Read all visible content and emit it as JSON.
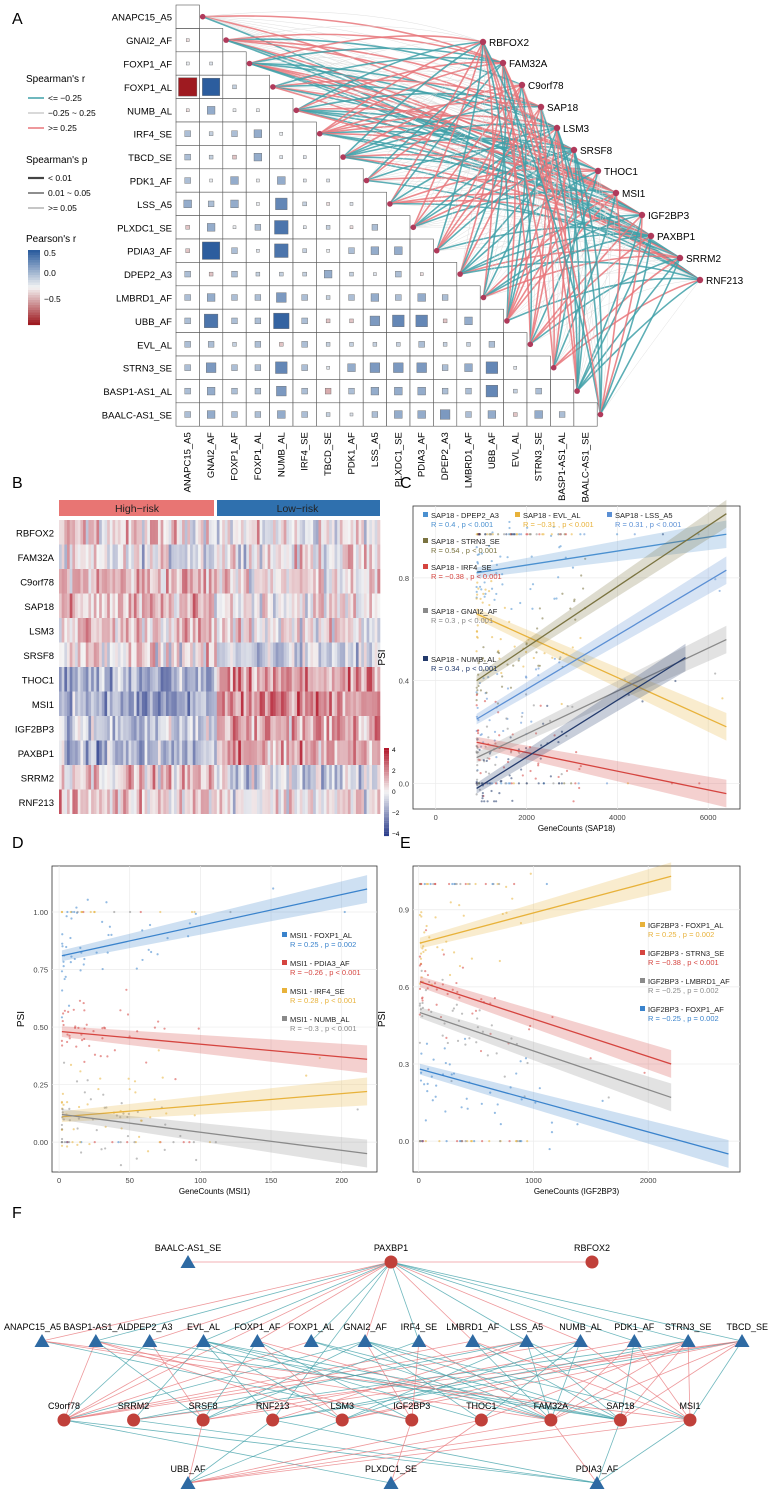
{
  "panel_labels": {
    "a": "A",
    "b": "B",
    "c": "C",
    "d": "D",
    "e": "E",
    "f": "F"
  },
  "colors": {
    "pos": "#e8767a",
    "neg": "#3fa0a8",
    "heat_high": "#b2182b",
    "heat_low": "#2c3e8c",
    "high_risk": "#e87573",
    "low_risk": "#2f70ae",
    "circle_node": "#c0403a",
    "triangle_node": "#2e6aa3"
  },
  "chart_data": [
    {
      "id": "A",
      "type": "heatmap",
      "title": "",
      "events": [
        "ANAPC15_A5",
        "GNAI2_AF",
        "FOXP1_AF",
        "FOXP1_AL",
        "NUMB_AL",
        "IRF4_SE",
        "TBCD_SE",
        "PDK1_AF",
        "LSS_A5",
        "PLXDC1_SE",
        "PDIA3_AF",
        "DPEP2_A3",
        "LMBRD1_AF",
        "UBB_AF",
        "EVL_AL",
        "STRN3_SE",
        "BASP1-AS1_AL",
        "BAALC-AS1_SE"
      ],
      "genes": [
        "RBFOX2",
        "FAM32A",
        "C9orf78",
        "SAP18",
        "LSM3",
        "SRSF8",
        "THOC1",
        "MSI1",
        "IGF2BP3",
        "PAXBP1",
        "SRRM2",
        "RNF213"
      ],
      "legend_spearman_r": {
        "title": "Spearman's r",
        "items": [
          "<= −0.25",
          "−0.25 ~ 0.25",
          ">= 0.25"
        ]
      },
      "legend_spearman_p": {
        "title": "Spearman's p",
        "items": [
          "< 0.01",
          "0.01 ~ 0.05",
          ">= 0.05"
        ]
      },
      "legend_pearson": {
        "title": "Pearson's r",
        "ticks": [
          "0.5",
          "0.0",
          "−0.5"
        ]
      },
      "pearson_matrix": [
        [
          -0.1
        ],
        [
          0.05,
          0.1
        ],
        [
          -0.95,
          0.9,
          0.2
        ],
        [
          -0.1,
          0.4,
          0.05,
          0.05
        ],
        [
          0.3,
          0.2,
          0.3,
          0.4,
          0.05
        ],
        [
          0.3,
          0.2,
          -0.2,
          0.4,
          0.1,
          0.1
        ],
        [
          0.3,
          0.05,
          0.4,
          0.05,
          0.4,
          0.1,
          0.1
        ],
        [
          0.4,
          0.3,
          0.4,
          0.05,
          0.6,
          0.2,
          -0.1,
          0.1
        ],
        [
          -0.2,
          0.4,
          0.05,
          0.3,
          0.7,
          0.1,
          0.2,
          -0.1,
          0.3
        ],
        [
          -0.2,
          0.9,
          0.3,
          0.1,
          0.7,
          0.2,
          0.05,
          0.3,
          0.4,
          0.4
        ],
        [
          0.3,
          -0.2,
          0.3,
          0.2,
          0.2,
          0.2,
          0.4,
          0.2,
          0.1,
          0.3,
          -0.1
        ],
        [
          0.3,
          0.4,
          0.3,
          0.3,
          0.5,
          0.3,
          0.2,
          0.3,
          0.4,
          0.3,
          0.4,
          0.3
        ],
        [
          0.3,
          0.7,
          0.3,
          0.3,
          0.8,
          0.3,
          -0.2,
          -0.2,
          0.5,
          0.6,
          0.6,
          -0.2,
          0.4
        ],
        [
          0.3,
          0.3,
          0.2,
          0.3,
          -0.2,
          0.3,
          0.2,
          0.2,
          0.2,
          0.2,
          0.3,
          0.2,
          0.2,
          0.3
        ],
        [
          0.3,
          0.5,
          0.3,
          0.3,
          0.6,
          0.3,
          0.1,
          0.4,
          0.5,
          0.5,
          0.5,
          0.3,
          0.4,
          0.6,
          0.1
        ],
        [
          0.3,
          0.4,
          0.3,
          0.3,
          0.5,
          0.3,
          -0.3,
          0.3,
          0.4,
          0.4,
          0.4,
          0.3,
          0.3,
          0.6,
          0.2,
          0.3
        ],
        [
          0.3,
          0.4,
          0.3,
          0.3,
          0.4,
          0.3,
          0.2,
          0.1,
          0.3,
          0.4,
          0.4,
          0.5,
          0.3,
          0.4,
          -0.2,
          0.4,
          0.3
        ]
      ]
    },
    {
      "id": "B",
      "type": "heatmap",
      "title": "",
      "groups": [
        "High−risk",
        "Low−risk"
      ],
      "rows": [
        "RBFOX2",
        "FAM32A",
        "C9orf78",
        "SAP18",
        "LSM3",
        "SRSF8",
        "THOC1",
        "MSI1",
        "IGF2BP3",
        "PAXBP1",
        "SRRM2",
        "RNF213"
      ],
      "row_bias_high": [
        0.2,
        -0.1,
        0.4,
        0.3,
        0.3,
        0.1,
        -0.6,
        -0.6,
        -0.3,
        -0.5,
        0.3,
        0.3
      ],
      "row_bias_low": [
        0.0,
        0.1,
        0.2,
        0.1,
        0.1,
        -0.3,
        0.5,
        0.7,
        0.5,
        0.5,
        -0.2,
        0.1
      ],
      "scale_ticks": [
        "4",
        "2",
        "0",
        "−2",
        "−4"
      ],
      "range": [
        -4,
        4
      ]
    },
    {
      "id": "C",
      "type": "scatter",
      "title": "",
      "xlabel": "GeneCounts (SAP18)",
      "ylabel": "PSI",
      "xlim": [
        -500,
        6700
      ],
      "ylim": [
        -0.1,
        1.08
      ],
      "xticks": [
        0,
        2000,
        4000,
        6000
      ],
      "yticks": [
        0.0,
        0.4,
        0.8
      ],
      "series": [
        {
          "name": "SAP18 - DPEP2_A3",
          "stats": "R = 0.4 , p < 0.001",
          "color": "#4a90d0",
          "x0": 900,
          "y0": 0.82,
          "x1": 6400,
          "y1": 0.97
        },
        {
          "name": "SAP18 - EVL_AL",
          "stats": "R = −0.31 , p < 0.001",
          "color": "#e8b23a",
          "x0": 900,
          "y0": 0.66,
          "x1": 6400,
          "y1": 0.22
        },
        {
          "name": "SAP18 - LSS_A5",
          "stats": "R = 0.31 , p < 0.001",
          "color": "#5b8fd4",
          "x0": 900,
          "y0": 0.25,
          "x1": 6400,
          "y1": 0.83
        },
        {
          "name": "SAP18 - STRN3_SE",
          "stats": "R = 0.54 , p < 0.001",
          "color": "#7a7340",
          "x0": 900,
          "y0": 0.4,
          "x1": 6400,
          "y1": 1.05
        },
        {
          "name": "SAP18 - IRF4_SE",
          "stats": "R = −0.38 , p < 0.001",
          "color": "#d5443f",
          "x0": 900,
          "y0": 0.16,
          "x1": 6400,
          "y1": -0.04
        },
        {
          "name": "SAP18 - GNAI2_AF",
          "stats": "R = 0.3 , p < 0.001",
          "color": "#8a8a8a",
          "x0": 900,
          "y0": 0.1,
          "x1": 6400,
          "y1": 0.56
        },
        {
          "name": "SAP18 - NUMB_AL",
          "stats": "R = 0.34 , p < 0.001",
          "color": "#233a6c",
          "x0": 900,
          "y0": -0.02,
          "x1": 5500,
          "y1": 0.49
        }
      ]
    },
    {
      "id": "D",
      "type": "scatter",
      "title": "",
      "xlabel": "GeneCounts (MSI1)",
      "ylabel": "PSI",
      "xlim": [
        -5,
        225
      ],
      "ylim": [
        -0.13,
        1.2
      ],
      "xticks": [
        0,
        50,
        100,
        150,
        200
      ],
      "yticks": [
        0.0,
        0.25,
        0.5,
        0.75,
        1.0
      ],
      "series": [
        {
          "name": "MSI1 - FOXP1_AL",
          "stats": "R = 0.25 , p = 0.002",
          "color": "#3a83cc",
          "x0": 2,
          "y0": 0.81,
          "x1": 218,
          "y1": 1.1
        },
        {
          "name": "MSI1 - PDIA3_AF",
          "stats": "R = −0.26 , p < 0.001",
          "color": "#d5443f",
          "x0": 2,
          "y0": 0.48,
          "x1": 218,
          "y1": 0.36
        },
        {
          "name": "MSI1 - IRF4_SE",
          "stats": "R = 0.28 , p < 0.001",
          "color": "#e8b23a",
          "x0": 2,
          "y0": 0.11,
          "x1": 218,
          "y1": 0.22
        },
        {
          "name": "MSI1 - NUMB_AL",
          "stats": "R = −0.3 , p < 0.001",
          "color": "#8a8a8a",
          "x0": 2,
          "y0": 0.12,
          "x1": 218,
          "y1": -0.05
        }
      ]
    },
    {
      "id": "E",
      "type": "scatter",
      "title": "",
      "xlabel": "GeneCounts (IGF2BP3)",
      "ylabel": "PSI",
      "xlim": [
        -50,
        2800
      ],
      "ylim": [
        -0.12,
        1.07
      ],
      "xticks": [
        0,
        1000,
        2000
      ],
      "yticks": [
        0.0,
        0.3,
        0.6,
        0.9
      ],
      "series": [
        {
          "name": "IGF2BP3 - FOXP1_AL",
          "stats": "R = 0.25 , p = 0.002",
          "color": "#e8b23a",
          "x0": 10,
          "y0": 0.77,
          "x1": 2200,
          "y1": 1.03
        },
        {
          "name": "IGF2BP3 - STRN3_SE",
          "stats": "R = −0.38 , p < 0.001",
          "color": "#d5443f",
          "x0": 10,
          "y0": 0.62,
          "x1": 2200,
          "y1": 0.3
        },
        {
          "name": "IGF2BP3 - LMBRD1_AF",
          "stats": "R = −0.25 , p = 0.002",
          "color": "#8a8a8a",
          "x0": 10,
          "y0": 0.5,
          "x1": 2200,
          "y1": 0.17
        },
        {
          "name": "IGF2BP3 - FOXP1_AF",
          "stats": "R = −0.25 , p = 0.002",
          "color": "#3a83cc",
          "x0": 10,
          "y0": 0.28,
          "x1": 2700,
          "y1": -0.05
        }
      ]
    },
    {
      "id": "F",
      "type": "network",
      "title": "",
      "row1": [
        {
          "label": "BAALC-AS1_SE",
          "shape": "triangle"
        },
        {
          "label": "PAXBP1",
          "shape": "circle"
        },
        {
          "label": "RBFOX2",
          "shape": "circle"
        }
      ],
      "row2": [
        "ANAPC15_A5",
        "BASP1-AS1_AL",
        "DPEP2_A3",
        "EVL_AL",
        "FOXP1_AF",
        "FOXP1_AL",
        "GNAI2_AF",
        "IRF4_SE",
        "LMBRD1_AF",
        "LSS_A5",
        "NUMB_AL",
        "PDK1_AF",
        "STRN3_SE",
        "TBCD_SE"
      ],
      "row3": [
        "C9orf78",
        "SRRM2",
        "SRSF8",
        "RNF213",
        "LSM3",
        "IGF2BP3",
        "THOC1",
        "FAM32A",
        "SAP18",
        "MSI1"
      ],
      "row4": [
        "UBB_AF",
        "PLXDC1_SE",
        "PDIA3_AF"
      ]
    }
  ]
}
